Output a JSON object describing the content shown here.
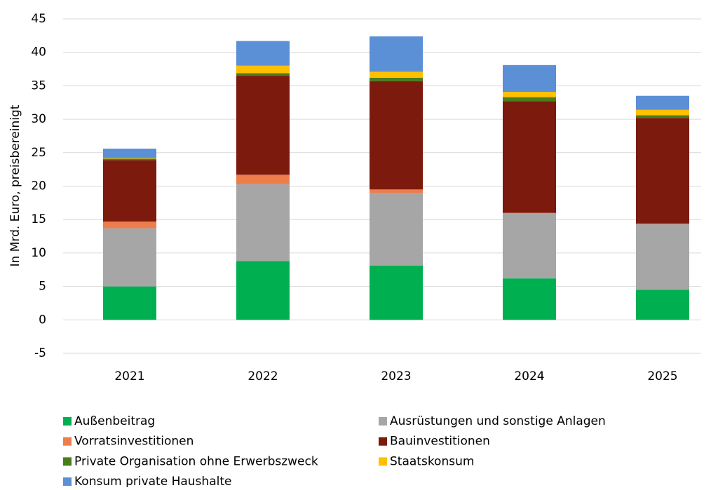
{
  "chart_data": {
    "type": "stacked_bar",
    "y_label": "In Mrd. Euro, preisbereinigt",
    "categories": [
      "2021",
      "2022",
      "2023",
      "2024",
      "2025"
    ],
    "series": [
      {
        "name": "Außenbeitrag",
        "color": "#00b050",
        "values": [
          5.0,
          8.8,
          8.1,
          6.2,
          4.5
        ]
      },
      {
        "name": "Ausrüstungen und sonstige Anlagen",
        "color": "#a6a6a6",
        "values": [
          8.7,
          11.5,
          10.9,
          9.7,
          9.8
        ]
      },
      {
        "name": "Vorratsinvestitionen",
        "color": "#ed7d4b",
        "values": [
          1.0,
          1.4,
          0.5,
          0.1,
          0.1
        ]
      },
      {
        "name": "Bauinvestitionen",
        "color": "#7b1a0d",
        "values": [
          9.2,
          14.8,
          16.2,
          16.7,
          15.8
        ]
      },
      {
        "name": "Private Organisation ohne Erwerbszweck",
        "color": "#4a7d1b",
        "values": [
          0.2,
          0.4,
          0.5,
          0.6,
          0.4
        ]
      },
      {
        "name": "Staatskonsum",
        "color": "#ffc000",
        "values": [
          0.1,
          1.1,
          0.9,
          0.8,
          0.8
        ]
      },
      {
        "name": "Konsum private Haushalte",
        "color": "#5b8fd6",
        "values": [
          1.4,
          3.7,
          5.3,
          4.0,
          2.1
        ]
      }
    ],
    "ylim": [
      -5,
      45
    ],
    "yticks": [
      -5,
      0,
      5,
      10,
      15,
      20,
      25,
      30,
      35,
      40,
      45
    ],
    "grid": true
  }
}
